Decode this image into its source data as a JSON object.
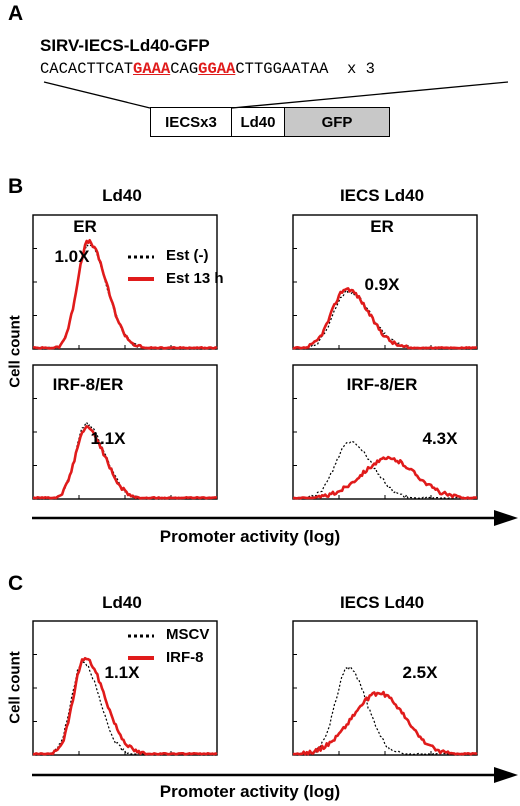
{
  "panel_a": {
    "letter": "A",
    "construct_name": "SIRV-IECS-Ld40-GFP",
    "sequence": {
      "pre": "CACACTTCAT",
      "motif1": "GAAA",
      "mid": "CAG",
      "motif2": "GGAA",
      "post": "CTTGGAATAA",
      "repeat": "x 3"
    },
    "boxes": [
      "IECSx3",
      "Ld40",
      "GFP"
    ],
    "colors": {
      "motif": "#e01b1b",
      "gfp_fill": "#c8c8c8"
    }
  },
  "panel_b": {
    "letter": "B",
    "col_titles": [
      "Ld40",
      "IECS Ld40"
    ],
    "y_label": "Cell count",
    "x_label": "Promoter activity (log)",
    "legend": [
      {
        "label": "Est (-)",
        "color": "#000000",
        "style": "dotted"
      },
      {
        "label": "Est 13 h",
        "color": "#e01b1b",
        "style": "solid"
      }
    ]
  },
  "panel_c": {
    "letter": "C",
    "col_titles": [
      "Ld40",
      "IECS Ld40"
    ],
    "y_label": "Cell count",
    "x_label": "Promoter activity (log)",
    "legend": [
      {
        "label": "MSCV",
        "color": "#000000",
        "style": "dotted"
      },
      {
        "label": "IRF-8",
        "color": "#e01b1b",
        "style": "solid"
      }
    ]
  },
  "chart_data": [
    {
      "type": "area",
      "panel": "B",
      "row_label": "ER",
      "column": "Ld40",
      "fold_change": "1.0X",
      "series": [
        {
          "name": "Est (-)",
          "color": "#000000",
          "peak_x": 0.3,
          "peak_height": 0.78,
          "spread_left": 0.06,
          "spread_right": 0.1
        },
        {
          "name": "Est 13 h",
          "color": "#e01b1b",
          "peak_x": 0.3,
          "peak_height": 0.8,
          "spread_left": 0.06,
          "spread_right": 0.1
        }
      ]
    },
    {
      "type": "area",
      "panel": "B",
      "row_label": "ER",
      "column": "IECS Ld40",
      "fold_change": "0.9X",
      "series": [
        {
          "name": "Est (-)",
          "color": "#000000",
          "peak_x": 0.3,
          "peak_height": 0.43,
          "spread_left": 0.08,
          "spread_right": 0.12
        },
        {
          "name": "Est 13 h",
          "color": "#e01b1b",
          "peak_x": 0.29,
          "peak_height": 0.45,
          "spread_left": 0.08,
          "spread_right": 0.12
        }
      ]
    },
    {
      "type": "area",
      "panel": "B",
      "row_label": "IRF-8/ER",
      "column": "Ld40",
      "fold_change": "1.1X",
      "series": [
        {
          "name": "Est (-)",
          "color": "#000000",
          "peak_x": 0.29,
          "peak_height": 0.56,
          "spread_left": 0.06,
          "spread_right": 0.1
        },
        {
          "name": "Est 13 h",
          "color": "#e01b1b",
          "peak_x": 0.29,
          "peak_height": 0.53,
          "spread_left": 0.06,
          "spread_right": 0.1
        }
      ]
    },
    {
      "type": "area",
      "panel": "B",
      "row_label": "IRF-8/ER",
      "column": "IECS Ld40",
      "fold_change": "4.3X",
      "series": [
        {
          "name": "Est (-)",
          "color": "#000000",
          "peak_x": 0.31,
          "peak_height": 0.43,
          "spread_left": 0.08,
          "spread_right": 0.12
        },
        {
          "name": "Est 13 h",
          "color": "#e01b1b",
          "peak_x": 0.52,
          "peak_height": 0.3,
          "spread_left": 0.15,
          "spread_right": 0.15
        }
      ]
    },
    {
      "type": "area",
      "panel": "C",
      "row_label": "",
      "column": "Ld40",
      "fold_change": "1.1X",
      "series": [
        {
          "name": "MSCV",
          "color": "#000000",
          "peak_x": 0.27,
          "peak_height": 0.7,
          "spread_left": 0.06,
          "spread_right": 0.09
        },
        {
          "name": "IRF-8",
          "color": "#e01b1b",
          "peak_x": 0.28,
          "peak_height": 0.72,
          "spread_left": 0.06,
          "spread_right": 0.11
        }
      ]
    },
    {
      "type": "area",
      "panel": "C",
      "row_label": "",
      "column": "IECS Ld40",
      "fold_change": "2.5X",
      "series": [
        {
          "name": "MSCV",
          "color": "#000000",
          "peak_x": 0.3,
          "peak_height": 0.65,
          "spread_left": 0.07,
          "spread_right": 0.1
        },
        {
          "name": "IRF-8",
          "color": "#e01b1b",
          "peak_x": 0.47,
          "peak_height": 0.46,
          "spread_left": 0.15,
          "spread_right": 0.14
        }
      ]
    }
  ]
}
